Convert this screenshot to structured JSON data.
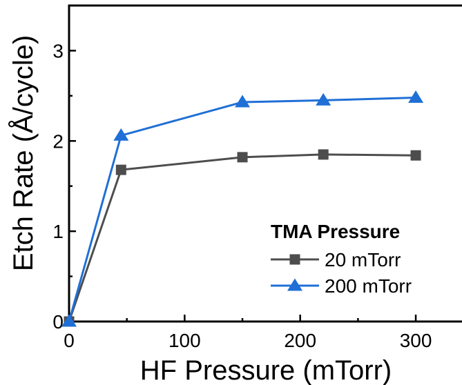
{
  "chart_data": {
    "type": "line",
    "title": "",
    "xlabel": "HF Pressure (mTorr)",
    "ylabel": "Etch Rate (Å/cycle)",
    "xlim": [
      0,
      340
    ],
    "ylim": [
      0,
      3.5
    ],
    "xticks": [
      0,
      100,
      200,
      300
    ],
    "yticks": [
      0,
      1,
      2,
      3
    ],
    "xtick_labels": [
      "0",
      "100",
      "200",
      "300"
    ],
    "ytick_labels": [
      "0",
      "1",
      "2",
      "3"
    ],
    "grid": false,
    "legend": {
      "title": "TMA Pressure",
      "placement": "bottom-right"
    },
    "series": [
      {
        "name": "20 mTorr",
        "marker": "square",
        "color": "#4d4d4d",
        "x": [
          0,
          45,
          150,
          220,
          300
        ],
        "y": [
          0,
          1.68,
          1.82,
          1.85,
          1.84
        ]
      },
      {
        "name": "200 mTorr",
        "marker": "triangle",
        "color": "#1f6fd6",
        "x": [
          0,
          45,
          150,
          220,
          300
        ],
        "y": [
          0,
          2.06,
          2.43,
          2.45,
          2.48
        ]
      }
    ]
  }
}
